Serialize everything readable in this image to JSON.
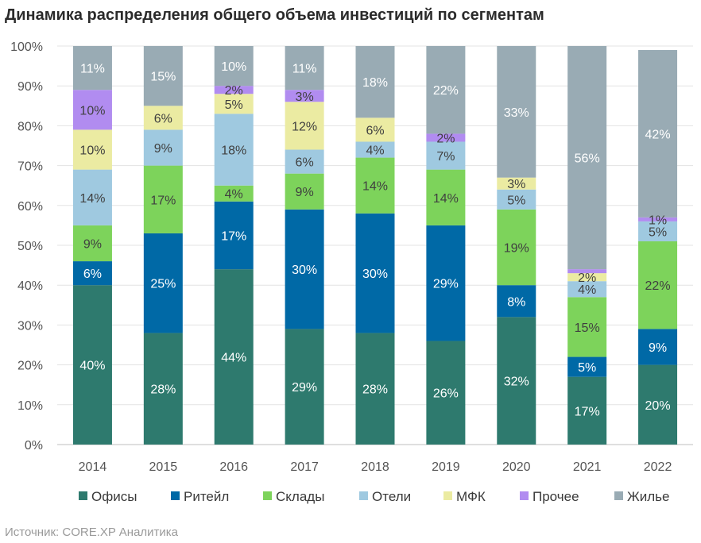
{
  "title": "Динамика распределения общего объема инвестиций по сегментам",
  "source": "Источник: CORE.XP Аналитика",
  "chart_data": {
    "type": "bar",
    "stacked": true,
    "title": "Динамика распределения общего объема инвестиций по сегментам",
    "xlabel": "",
    "ylabel": "",
    "ylim": [
      0,
      100
    ],
    "y_ticks": [
      "0%",
      "10%",
      "20%",
      "30%",
      "40%",
      "50%",
      "60%",
      "70%",
      "80%",
      "90%",
      "100%"
    ],
    "categories": [
      "2014",
      "2015",
      "2016",
      "2017",
      "2018",
      "2019",
      "2020",
      "2021",
      "2022"
    ],
    "legend_position": "bottom",
    "series": [
      {
        "name": "Офисы",
        "color": "#2e7a6e",
        "label_color": "#ffffff",
        "values": [
          40,
          28,
          44,
          29,
          28,
          26,
          32,
          17,
          20
        ],
        "labels": [
          "40%",
          "28%",
          "44%",
          "29%",
          "28%",
          "26%",
          "32%",
          "17%",
          "20%"
        ]
      },
      {
        "name": "Ритейл",
        "color": "#0069a6",
        "label_color": "#ffffff",
        "values": [
          6,
          25,
          17,
          30,
          30,
          29,
          8,
          5,
          9
        ],
        "labels": [
          "6%",
          "25%",
          "17%",
          "30%",
          "30%",
          "29%",
          "8%",
          "5%",
          "9%"
        ]
      },
      {
        "name": "Склады",
        "color": "#7dd35b",
        "label_color": "#404040",
        "values": [
          9,
          17,
          4,
          9,
          14,
          14,
          19,
          15,
          22
        ],
        "labels": [
          "9%",
          "17%",
          "4%",
          "9%",
          "14%",
          "14%",
          "19%",
          "15%",
          "22%"
        ]
      },
      {
        "name": "Отели",
        "color": "#9fc9e0",
        "label_color": "#404040",
        "values": [
          14,
          9,
          18,
          6,
          4,
          7,
          5,
          4,
          5
        ],
        "labels": [
          "14%",
          "9%",
          "18%",
          "6%",
          "4%",
          "7%",
          "5%",
          "4%",
          "5%"
        ]
      },
      {
        "name": "МФК",
        "color": "#ebeba2",
        "label_color": "#404040",
        "values": [
          10,
          6,
          5,
          12,
          6,
          0,
          3,
          2,
          0
        ],
        "labels": [
          "10%",
          "6%",
          "5%",
          "12%",
          "6%",
          "",
          "3%",
          "2%",
          ""
        ]
      },
      {
        "name": "Прочее",
        "color": "#b18cf0",
        "label_color": "#404040",
        "values": [
          10,
          0,
          2,
          3,
          0,
          2,
          0,
          1,
          1
        ],
        "labels": [
          "10%",
          "",
          "2%",
          "3%",
          "",
          "2%",
          "",
          "",
          "1%"
        ]
      },
      {
        "name": "Жилье",
        "color": "#99abb4",
        "label_color": "#ffffff",
        "values": [
          11,
          15,
          10,
          11,
          18,
          22,
          33,
          56,
          42
        ],
        "labels": [
          "11%",
          "15%",
          "10%",
          "11%",
          "18%",
          "22%",
          "33%",
          "56%",
          "42%"
        ]
      }
    ]
  }
}
